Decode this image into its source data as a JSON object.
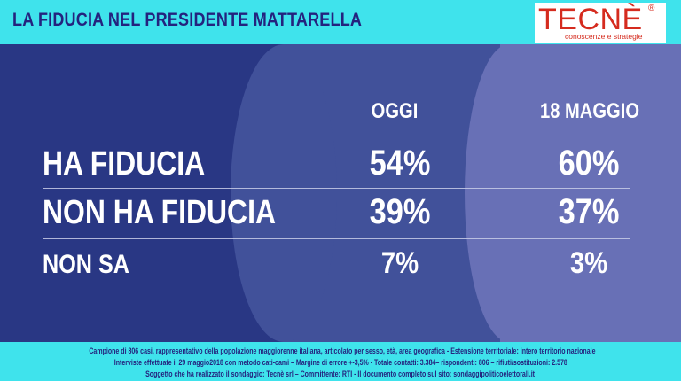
{
  "header": {
    "title": "LA FIDUCIA NEL PRESIDENTE MATTARELLA",
    "logo": {
      "word": "TECNÈ",
      "registered": "®",
      "tagline": "conoscenze e strategie",
      "color": "#d52b1e"
    }
  },
  "chart_data": {
    "type": "table",
    "columns": [
      "OGGI",
      "18 MAGGIO"
    ],
    "rows": [
      {
        "label": "HA FIDUCIA",
        "values": [
          "54%",
          "60%"
        ]
      },
      {
        "label": "NON HA FIDUCIA",
        "values": [
          "39%",
          "37%"
        ]
      },
      {
        "label": "NON SA",
        "values": [
          "7%",
          "3%"
        ]
      }
    ]
  },
  "footer": {
    "lines": [
      "Campione di  806 casi, rappresentativo della popolazione maggiorenne italiana, articolato per sesso, età, area geografica - Estensione territoriale: intero territorio nazionale",
      "Interviste effettuate il 29 maggio2018 con metodo cati-cami  – Margine di errore +-3,5%  - Totale contatti: 3.384– rispondenti: 806 – rifiuti/sostituzioni: 2.578",
      "Soggetto che ha realizzato il sondaggio: Tecnè srl – Committente: RTI - Il documento completo sul sito: sondaggipoliticoelettorali.it"
    ]
  },
  "colors": {
    "header_bg": "#3fe3ec",
    "title_text": "#24237e",
    "col_label_bg": "#293784",
    "col_today_bg": "#41519a",
    "col_may_bg": "#6870b6"
  }
}
